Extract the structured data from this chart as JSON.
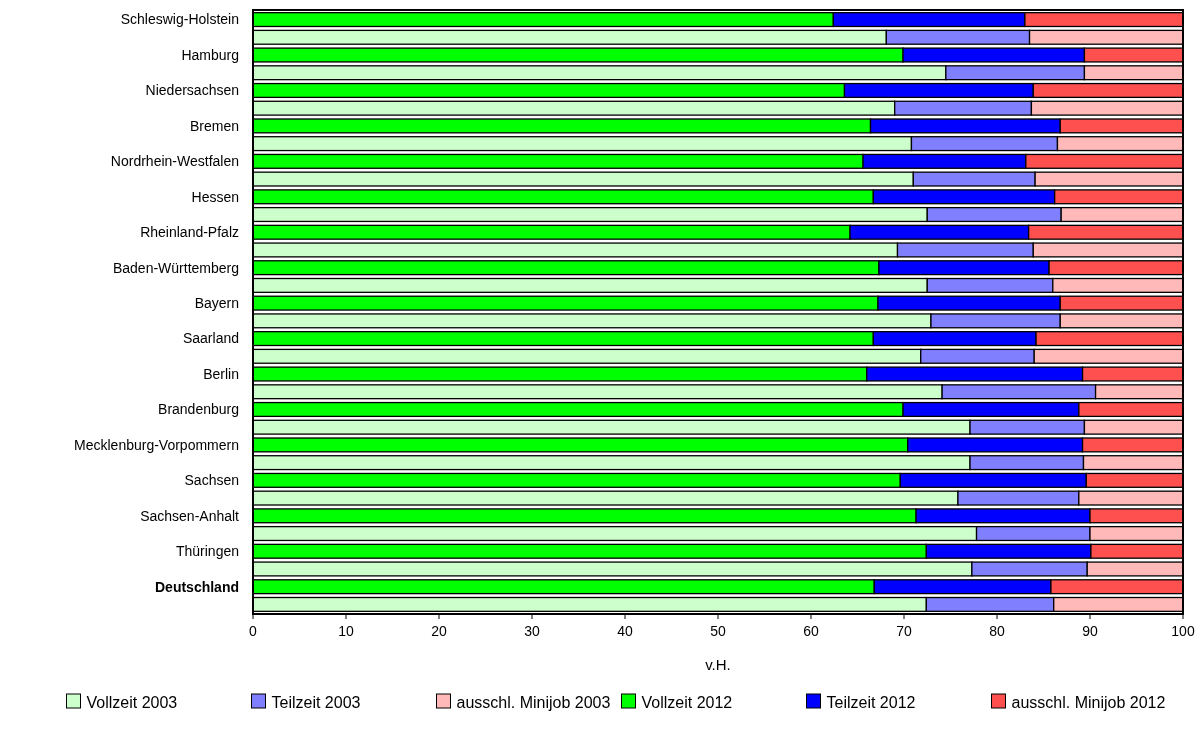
{
  "chart_data": {
    "type": "bar",
    "orientation": "horizontal",
    "stacked": true,
    "xlabel": "v.H.",
    "categories": [
      "Schleswig-Holstein",
      null,
      "Hamburg",
      null,
      "Niedersachsen",
      null,
      "Bremen",
      null,
      "Nordrhein-Westfalen",
      null,
      "Hessen",
      null,
      "Rheinland-Pfalz",
      null,
      "Baden-Württemberg",
      null,
      "Bayern",
      null,
      "Saarland",
      null,
      "Berlin",
      null,
      "Brandenburg",
      null,
      "Mecklenburg-Vorpommern",
      null,
      "Sachsen",
      null,
      "Sachsen-Anhalt",
      null,
      "Thüringen",
      null,
      "Deutschland",
      null
    ],
    "series": [
      {
        "name": "Vollzeit 2003",
        "color": "#ccffcc",
        "values": [
          null,
          68.1,
          null,
          74.5,
          null,
          69.0,
          null,
          70.8,
          null,
          71.0,
          null,
          72.5,
          null,
          69.3,
          null,
          72.5,
          null,
          72.9,
          null,
          71.8,
          null,
          74.1,
          null,
          77.1,
          null,
          77.1,
          null,
          75.8,
          null,
          77.8,
          null,
          77.3,
          null,
          72.4
        ]
      },
      {
        "name": "Teilzeit 2003",
        "color": "#8080ff",
        "values": [
          null,
          15.4,
          null,
          14.9,
          null,
          14.7,
          null,
          15.7,
          null,
          13.1,
          null,
          14.4,
          null,
          14.6,
          null,
          13.5,
          null,
          13.9,
          null,
          12.2,
          null,
          16.5,
          null,
          12.3,
          null,
          12.2,
          null,
          13.0,
          null,
          12.2,
          null,
          12.4,
          null,
          13.7
        ]
      },
      {
        "name": "ausschl. Minijob 2003",
        "color": "#ffb9b9",
        "values": [
          null,
          16.5,
          null,
          10.6,
          null,
          16.3,
          null,
          13.5,
          null,
          15.9,
          null,
          13.1,
          null,
          16.1,
          null,
          14.0,
          null,
          13.2,
          null,
          16.0,
          null,
          9.4,
          null,
          10.6,
          null,
          10.7,
          null,
          11.2,
          null,
          10.0,
          null,
          10.3,
          null,
          13.9
        ]
      },
      {
        "name": "Vollzeit 2012",
        "color": "#00ff00",
        "values": [
          62.4,
          null,
          69.9,
          null,
          63.6,
          null,
          66.4,
          null,
          65.6,
          null,
          66.7,
          null,
          64.2,
          null,
          67.3,
          null,
          67.2,
          null,
          66.7,
          null,
          66.0,
          null,
          69.9,
          null,
          70.4,
          null,
          69.6,
          null,
          71.3,
          null,
          72.4,
          null,
          66.8,
          null
        ]
      },
      {
        "name": "Teilzeit 2012",
        "color": "#0000ff",
        "values": [
          20.6,
          null,
          19.5,
          null,
          20.3,
          null,
          20.4,
          null,
          17.5,
          null,
          19.5,
          null,
          19.2,
          null,
          18.3,
          null,
          19.6,
          null,
          17.5,
          null,
          23.2,
          null,
          18.9,
          null,
          18.8,
          null,
          20.0,
          null,
          18.7,
          null,
          17.7,
          null,
          19.0,
          null
        ]
      },
      {
        "name": "ausschl. Minijob 2012",
        "color": "#ff5050",
        "values": [
          17.0,
          null,
          10.6,
          null,
          16.1,
          null,
          13.2,
          null,
          16.9,
          null,
          13.8,
          null,
          16.6,
          null,
          14.4,
          null,
          13.2,
          null,
          15.8,
          null,
          10.8,
          null,
          11.2,
          null,
          10.8,
          null,
          10.4,
          null,
          10.0,
          null,
          9.9,
          null,
          14.2,
          null
        ]
      }
    ],
    "xlim": [
      0,
      100
    ],
    "xticks": [
      0,
      10,
      20,
      30,
      40,
      50,
      60,
      70,
      80,
      90,
      100
    ],
    "grid": false,
    "legend": "bottom"
  }
}
